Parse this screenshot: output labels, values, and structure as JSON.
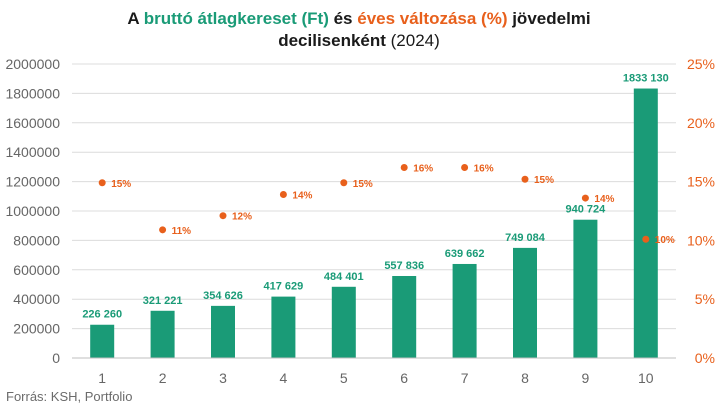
{
  "title": {
    "p1": "A ",
    "p2": "bruttó átlagkereset (Ft)",
    "p3": " és ",
    "p4": "éves változása (%)",
    "p5": " jövedelmi",
    "p6": "decilisenként",
    "p7": " (2024)"
  },
  "source": "Forrás: KSH, Portfolio",
  "colors": {
    "bar": "#1a9b77",
    "dot": "#e8601c",
    "grid": "#dcdcdc",
    "axisText": "#666666"
  },
  "chart_data": {
    "type": "bar",
    "title": "A bruttó átlagkereset (Ft) és éves változása (%) jövedelmi decilisenként (2024)",
    "categories": [
      "1",
      "2",
      "3",
      "4",
      "5",
      "6",
      "7",
      "8",
      "9",
      "10"
    ],
    "series": [
      {
        "name": "bruttó átlagkereset (Ft)",
        "type": "bar",
        "axis": "left",
        "values": [
          226260,
          321221,
          354626,
          417629,
          484401,
          557836,
          639662,
          749084,
          940724,
          1833130
        ],
        "labels": [
          "226 260",
          "321 221",
          "354 626",
          "417 629",
          "484 401",
          "557 836",
          "639 662",
          "749 084",
          "940 724",
          "1833 130"
        ]
      },
      {
        "name": "éves változása (%)",
        "type": "scatter",
        "axis": "right",
        "values": [
          14.9,
          10.9,
          12.1,
          13.9,
          14.9,
          16.2,
          16.2,
          15.2,
          13.6,
          10.1
        ],
        "labels": [
          "15%",
          "11%",
          "12%",
          "14%",
          "15%",
          "16%",
          "16%",
          "15%",
          "14%",
          "10%"
        ]
      }
    ],
    "y_left": {
      "ylim": [
        0,
        2000000
      ],
      "ticks": [
        0,
        200000,
        400000,
        600000,
        800000,
        1000000,
        1200000,
        1400000,
        1600000,
        1800000,
        2000000
      ],
      "tick_labels": [
        "0",
        "200000",
        "400000",
        "600000",
        "800000",
        "1000000",
        "1200000",
        "1400000",
        "1600000",
        "1800000",
        "2000000"
      ]
    },
    "y_right": {
      "ylim": [
        0,
        25
      ],
      "ticks": [
        0,
        5,
        10,
        15,
        20,
        25
      ],
      "tick_labels": [
        "0%",
        "5%",
        "10%",
        "15%",
        "20%",
        "25%"
      ]
    },
    "grid": true
  }
}
